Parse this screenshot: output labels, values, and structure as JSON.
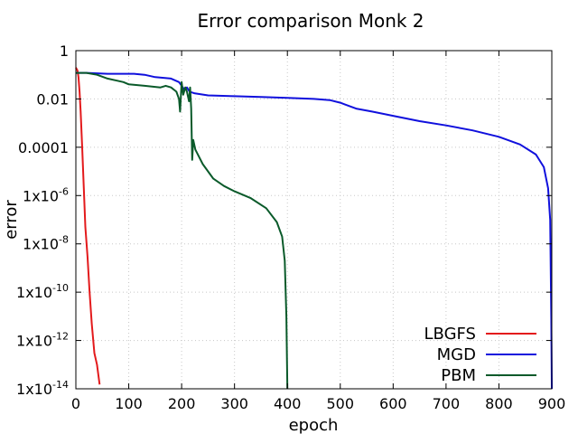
{
  "chart_data": {
    "type": "line",
    "title": "Error comparison Monk 2",
    "xlabel": "epoch",
    "ylabel": "error",
    "xlim": [
      0,
      900
    ],
    "ylim": [
      1e-14,
      1
    ],
    "yscale": "log",
    "grid": true,
    "legend_position": "bottom-right",
    "x_ticks": [
      {
        "value": 0,
        "label": "0"
      },
      {
        "value": 100,
        "label": "100"
      },
      {
        "value": 200,
        "label": "200"
      },
      {
        "value": 300,
        "label": "300"
      },
      {
        "value": 400,
        "label": "400"
      },
      {
        "value": 500,
        "label": "500"
      },
      {
        "value": 600,
        "label": "600"
      },
      {
        "value": 700,
        "label": "700"
      },
      {
        "value": 800,
        "label": "800"
      },
      {
        "value": 900,
        "label": "900"
      }
    ],
    "y_ticks": [
      {
        "value": 1,
        "label": "1"
      },
      {
        "value": 0.01,
        "label": "0.01"
      },
      {
        "value": 0.0001,
        "label": "0.0001"
      },
      {
        "value": 1e-06,
        "label": "1x10",
        "exp": "-6"
      },
      {
        "value": 1e-08,
        "label": "1x10",
        "exp": "-8"
      },
      {
        "value": 1e-10,
        "label": "1x10",
        "exp": "-10"
      },
      {
        "value": 1e-12,
        "label": "1x10",
        "exp": "-12"
      },
      {
        "value": 1e-14,
        "label": "1x10",
        "exp": "-14"
      }
    ],
    "series": [
      {
        "name": "LBGFS",
        "color": "#e31a1c",
        "points": [
          [
            0,
            0.2
          ],
          [
            3,
            0.15
          ],
          [
            5,
            0.08
          ],
          [
            7,
            0.02
          ],
          [
            9,
            0.003
          ],
          [
            12,
            0.0001
          ],
          [
            15,
            2e-06
          ],
          [
            18,
            5e-08
          ],
          [
            22,
            3e-09
          ],
          [
            26,
            1e-10
          ],
          [
            30,
            5e-12
          ],
          [
            35,
            3e-13
          ],
          [
            40,
            1e-13
          ],
          [
            45,
            1.5e-14
          ]
        ]
      },
      {
        "name": "MGD",
        "color": "#1010dd",
        "points": [
          [
            0,
            0.12
          ],
          [
            20,
            0.12
          ],
          [
            60,
            0.11
          ],
          [
            110,
            0.11
          ],
          [
            130,
            0.1
          ],
          [
            150,
            0.08
          ],
          [
            180,
            0.07
          ],
          [
            195,
            0.05
          ],
          [
            205,
            0.025
          ],
          [
            210,
            0.03
          ],
          [
            215,
            0.02
          ],
          [
            225,
            0.017
          ],
          [
            250,
            0.014
          ],
          [
            300,
            0.013
          ],
          [
            350,
            0.012
          ],
          [
            400,
            0.011
          ],
          [
            450,
            0.01
          ],
          [
            480,
            0.009
          ],
          [
            500,
            0.007
          ],
          [
            530,
            0.004
          ],
          [
            560,
            0.003
          ],
          [
            600,
            0.002
          ],
          [
            650,
            0.0012
          ],
          [
            700,
            0.0008
          ],
          [
            750,
            0.0005
          ],
          [
            800,
            0.00027
          ],
          [
            840,
            0.00013
          ],
          [
            870,
            5e-05
          ],
          [
            885,
            1.5e-05
          ],
          [
            893,
            2e-06
          ],
          [
            897,
            1e-07
          ],
          [
            899,
            1e-11
          ],
          [
            900,
            1e-14
          ]
        ]
      },
      {
        "name": "PBM",
        "color": "#0a5a2a",
        "points": [
          [
            0,
            0.12
          ],
          [
            20,
            0.12
          ],
          [
            40,
            0.1
          ],
          [
            60,
            0.07
          ],
          [
            90,
            0.05
          ],
          [
            100,
            0.04
          ],
          [
            130,
            0.035
          ],
          [
            160,
            0.03
          ],
          [
            170,
            0.035
          ],
          [
            180,
            0.03
          ],
          [
            190,
            0.02
          ],
          [
            195,
            0.01
          ],
          [
            197,
            0.003
          ],
          [
            200,
            0.05
          ],
          [
            203,
            0.015
          ],
          [
            207,
            0.03
          ],
          [
            210,
            0.02
          ],
          [
            214,
            0.008
          ],
          [
            216,
            0.03
          ],
          [
            218,
            0.004
          ],
          [
            220,
            3e-05
          ],
          [
            222,
            0.0002
          ],
          [
            226,
            8e-05
          ],
          [
            240,
            2e-05
          ],
          [
            260,
            5e-06
          ],
          [
            280,
            2.5e-06
          ],
          [
            300,
            1.5e-06
          ],
          [
            330,
            8e-07
          ],
          [
            360,
            3e-07
          ],
          [
            380,
            8e-08
          ],
          [
            390,
            2e-08
          ],
          [
            395,
            2e-09
          ],
          [
            398,
            1e-11
          ],
          [
            400,
            1e-14
          ]
        ]
      }
    ]
  }
}
